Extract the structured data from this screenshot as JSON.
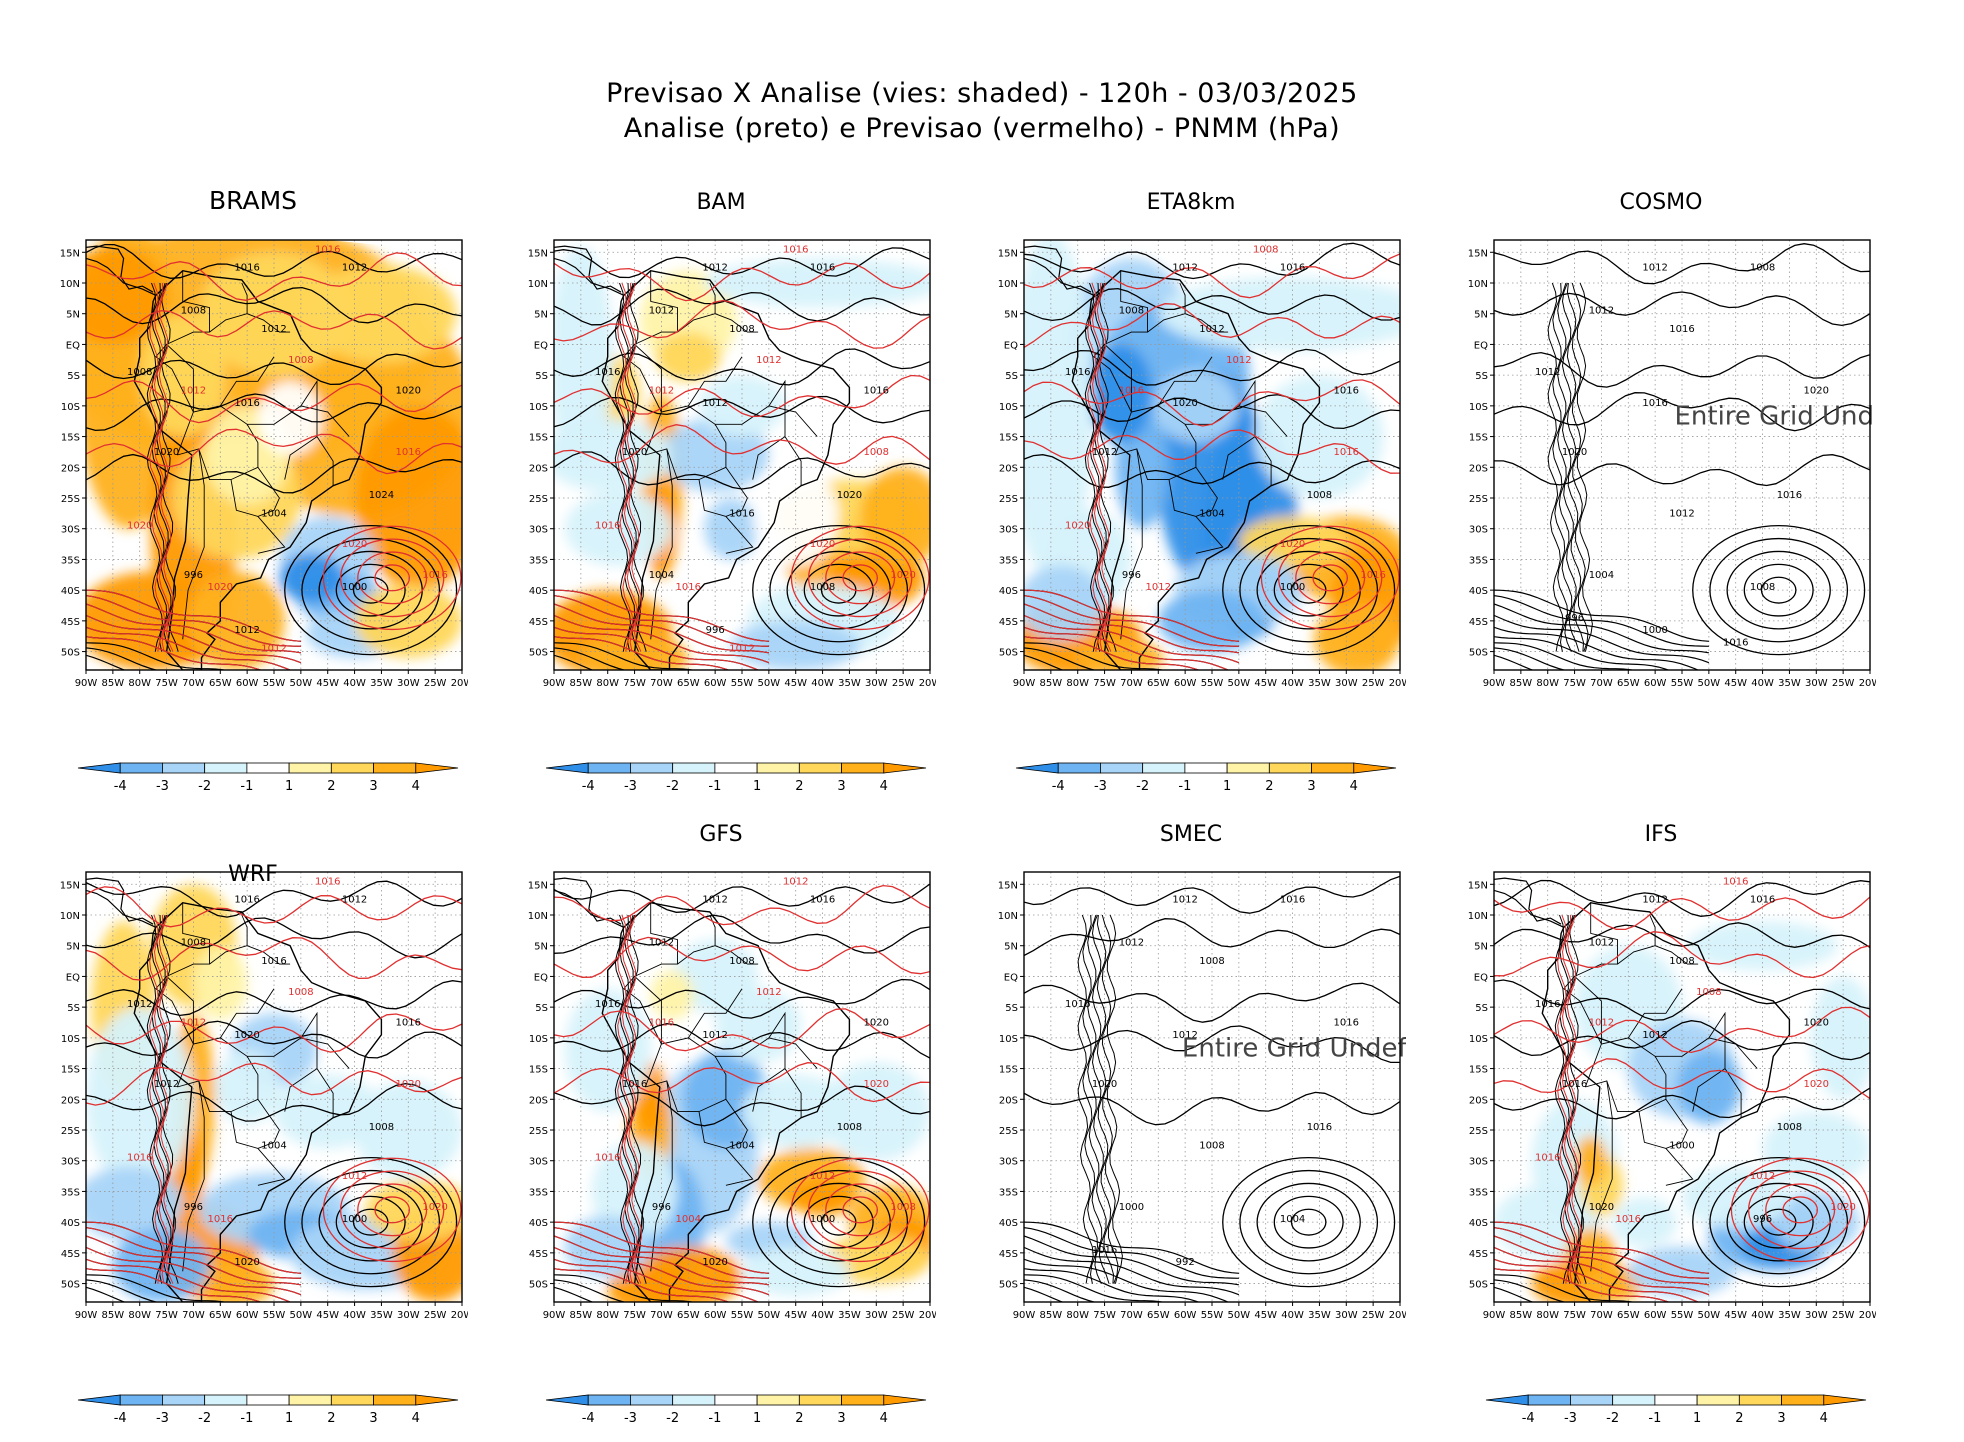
{
  "title": {
    "line1": "Previsao X Analise (vies: shaded) - 120h - 03/03/2025",
    "line2": "Analise (preto) e Previsao (vermelho) - PNMM (hPa)"
  },
  "axes": {
    "lat_labels": [
      "15N",
      "10N",
      "5N",
      "EQ",
      "5S",
      "10S",
      "15S",
      "20S",
      "25S",
      "30S",
      "35S",
      "40S",
      "45S",
      "50S"
    ],
    "lon_labels": [
      "90W",
      "85W",
      "80W",
      "75W",
      "70W",
      "65W",
      "60W",
      "55W",
      "50W",
      "45W",
      "40W",
      "35W",
      "30W",
      "25W",
      "20W"
    ]
  },
  "colorbar": {
    "labels": [
      "-4",
      "-3",
      "-2",
      "-1",
      "1",
      "2",
      "3",
      "4"
    ],
    "colors": [
      "#2f8fe8",
      "#6fb4f2",
      "#a8d4f8",
      "#d6f2fb",
      "#ffffff",
      "#fff3a8",
      "#ffd75a",
      "#ffb11c",
      "#ff9a00"
    ]
  },
  "panels": [
    {
      "name": "BRAMS",
      "undef": "",
      "mode": "brams",
      "labels_black": [
        "1016",
        "1012",
        "1008",
        "1012",
        "1008",
        "1016",
        "1020",
        "1020",
        "1024",
        "1004",
        "1000",
        "996",
        "1012"
      ],
      "labels_red": [
        "1016",
        "1012",
        "1008",
        "1016",
        "1020",
        "1020",
        "1016",
        "1020",
        "1012"
      ]
    },
    {
      "name": "BAM",
      "undef": "",
      "mode": "bam",
      "labels_black": [
        "1012",
        "1016",
        "1012",
        "1008",
        "1016",
        "1012",
        "1016",
        "1020",
        "1020",
        "1016",
        "1008",
        "1004",
        "996"
      ],
      "labels_red": [
        "1016",
        "1012",
        "1012",
        "1008",
        "1016",
        "1020",
        "1020",
        "1016",
        "1012"
      ]
    },
    {
      "name": "ETA8km",
      "undef": "",
      "mode": "eta",
      "labels_black": [
        "1012",
        "1016",
        "1008",
        "1012",
        "1016",
        "1020",
        "1016",
        "1012",
        "1008",
        "1004",
        "1000",
        "996"
      ],
      "labels_red": [
        "1008",
        "1016",
        "1012",
        "1016",
        "1020",
        "1020",
        "1016",
        "1012"
      ]
    },
    {
      "name": "COSMO",
      "undef": "Entire Grid Und",
      "mode": "cosmo",
      "labels_black": [
        "1012",
        "1008",
        "1012",
        "1016",
        "1012",
        "1016",
        "1020",
        "1020",
        "1016",
        "1012",
        "1008",
        "1004",
        "1000",
        "996",
        "1016"
      ],
      "labels_red": []
    },
    {
      "name": "WRF",
      "undef": "",
      "mode": "wrf",
      "labels_black": [
        "1016",
        "1012",
        "1008",
        "1016",
        "1012",
        "1020",
        "1016",
        "1012",
        "1008",
        "1004",
        "1000",
        "996",
        "1020"
      ],
      "labels_red": [
        "1016",
        "1012",
        "1008",
        "1020",
        "1016",
        "1012",
        "1020",
        "1016"
      ]
    },
    {
      "name": "GFS",
      "undef": "",
      "mode": "gfs",
      "labels_black": [
        "1012",
        "1016",
        "1012",
        "1008",
        "1016",
        "1012",
        "1020",
        "1016",
        "1008",
        "1004",
        "1000",
        "996",
        "1020"
      ],
      "labels_red": [
        "1012",
        "1016",
        "1012",
        "1020",
        "1016",
        "1012",
        "1008",
        "1004"
      ]
    },
    {
      "name": "SMEC",
      "undef": "Entire Grid Undef",
      "mode": "smec",
      "labels_black": [
        "1012",
        "1016",
        "1012",
        "1008",
        "1016",
        "1012",
        "1016",
        "1020",
        "1016",
        "1008",
        "1004",
        "1000",
        "992",
        "1016"
      ],
      "labels_red": []
    },
    {
      "name": "IFS",
      "undef": "",
      "mode": "ifs",
      "labels_black": [
        "1012",
        "1016",
        "1012",
        "1008",
        "1016",
        "1012",
        "1020",
        "1016",
        "1008",
        "1000",
        "996",
        "1020"
      ],
      "labels_red": [
        "1016",
        "1012",
        "1008",
        "1020",
        "1016",
        "1012",
        "1020",
        "1016"
      ]
    }
  ]
}
